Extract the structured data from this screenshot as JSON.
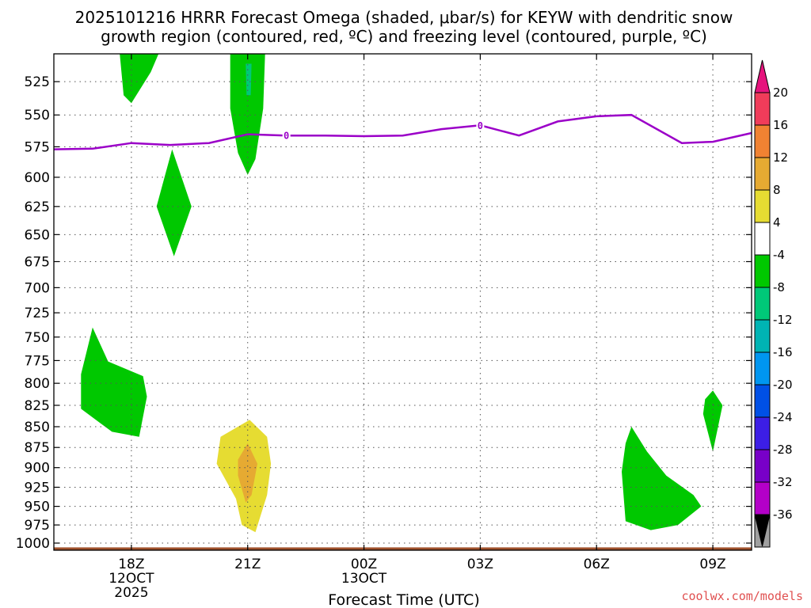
{
  "title_line1": "2025101216 HRRR Forecast Omega (shaded, μbar/s) for KEYW with dendritic snow",
  "title_line2": "growth region (contoured, red, ºC) and freezing level (contoured, purple, ºC)",
  "credit": "coolwx.com/models",
  "chart_data": {
    "type": "contour-timeheight",
    "title": "2025101216 HRRR Forecast Omega (shaded, μbar/s) for KEYW with dendritic snow growth region (contoured, red, ºC) and freezing level (contoured, purple, ºC)",
    "xlabel": "Forecast Time (UTC)",
    "ylabel": "",
    "x_unit": "hours after 2025-10-12 16Z",
    "xlim": [
      0,
      18
    ],
    "ylim": [
      1010,
      505
    ],
    "y_scale": "log",
    "grid": true,
    "x_ticks": [
      {
        "x": 2,
        "lines": [
          "18Z",
          "12OCT",
          "2025"
        ]
      },
      {
        "x": 5,
        "lines": [
          "21Z"
        ]
      },
      {
        "x": 8,
        "lines": [
          "00Z",
          "13OCT"
        ]
      },
      {
        "x": 11,
        "lines": [
          "03Z"
        ]
      },
      {
        "x": 14,
        "lines": [
          "06Z"
        ]
      },
      {
        "x": 17,
        "lines": [
          "09Z"
        ]
      }
    ],
    "y_ticks": [
      525,
      550,
      575,
      600,
      625,
      650,
      675,
      700,
      725,
      750,
      775,
      800,
      825,
      850,
      875,
      900,
      925,
      950,
      975,
      1000
    ],
    "colorbar": {
      "labels": [
        20,
        16,
        12,
        8,
        4,
        -4,
        -8,
        -12,
        -16,
        -20,
        -24,
        -28,
        -32,
        -36
      ],
      "colors": [
        "#f03c5a",
        "#f08232",
        "#e6aa32",
        "#e6dc32",
        "#ffffff",
        "#00c800",
        "#00c878",
        "#00b4b4",
        "#0096f0",
        "#0050e6",
        "#3c1ee6",
        "#7800c8",
        "#b400c8",
        "#a0a0a0"
      ],
      "top_arrow_color": "#e6147d",
      "bottom_arrow_color": "#000000"
    },
    "freezing_level": {
      "label": "0",
      "color": "#9b00c8",
      "points": [
        [
          0,
          577
        ],
        [
          1,
          576.5
        ],
        [
          2,
          572
        ],
        [
          3,
          573.5
        ],
        [
          4,
          572
        ],
        [
          5,
          565
        ],
        [
          6,
          566
        ],
        [
          7,
          566
        ],
        [
          8,
          566.5
        ],
        [
          9,
          566
        ],
        [
          10,
          561
        ],
        [
          11,
          558
        ],
        [
          12,
          566
        ],
        [
          13,
          555
        ],
        [
          14,
          551
        ],
        [
          14.9,
          550
        ],
        [
          16.2,
          572
        ],
        [
          17,
          571
        ],
        [
          18,
          564
        ]
      ],
      "label_positions": [
        [
          6,
          566
        ],
        [
          11,
          558
        ]
      ]
    },
    "shaded_regions": [
      {
        "name": "green-blob-top-left",
        "omega_range": "-8 to -4",
        "points": [
          [
            1.7,
            505
          ],
          [
            2.7,
            505
          ],
          [
            2.5,
            518
          ],
          [
            2.0,
            541
          ],
          [
            1.8,
            535
          ]
        ]
      },
      {
        "name": "green-blob-top-center",
        "omega_range": "-8 to -4",
        "points": [
          [
            4.55,
            505
          ],
          [
            5.45,
            505
          ],
          [
            5.4,
            545
          ],
          [
            5.2,
            585
          ],
          [
            5.0,
            598
          ],
          [
            4.75,
            580
          ],
          [
            4.55,
            545
          ]
        ]
      },
      {
        "name": "teal-streak-top-center",
        "omega_range": "-12 to -8",
        "points": [
          [
            4.95,
            512
          ],
          [
            5.1,
            512
          ],
          [
            5.08,
            535
          ],
          [
            4.97,
            535
          ]
        ]
      },
      {
        "name": "green-diamond-upper",
        "omega_range": "-8 to -4",
        "points": [
          [
            3.05,
            577
          ],
          [
            3.55,
            625
          ],
          [
            3.1,
            670
          ],
          [
            2.65,
            625
          ]
        ]
      },
      {
        "name": "green-blob-mid-left",
        "omega_range": "-8 to -4",
        "points": [
          [
            1.0,
            740
          ],
          [
            1.4,
            776
          ],
          [
            2.3,
            792
          ],
          [
            2.4,
            815
          ],
          [
            2.2,
            862
          ],
          [
            1.5,
            856
          ],
          [
            0.7,
            829
          ],
          [
            0.7,
            790
          ]
        ]
      },
      {
        "name": "yellow-blob-lower-center",
        "omega_range": "4 to 8",
        "points": [
          [
            5.05,
            842
          ],
          [
            5.5,
            862
          ],
          [
            5.6,
            895
          ],
          [
            5.5,
            935
          ],
          [
            5.2,
            985
          ],
          [
            4.85,
            975
          ],
          [
            4.7,
            940
          ],
          [
            4.2,
            895
          ],
          [
            4.3,
            862
          ]
        ]
      },
      {
        "name": "orange-core-lower-center",
        "omega_range": "8 to 12",
        "points": [
          [
            5.0,
            870
          ],
          [
            5.25,
            895
          ],
          [
            5.1,
            935
          ],
          [
            4.95,
            945
          ],
          [
            4.75,
            910
          ],
          [
            4.75,
            890
          ]
        ]
      },
      {
        "name": "green-blob-lower-right",
        "omega_range": "-8 to -4",
        "points": [
          [
            14.9,
            850
          ],
          [
            15.3,
            880
          ],
          [
            15.8,
            910
          ],
          [
            16.5,
            935
          ],
          [
            16.7,
            950
          ],
          [
            16.1,
            975
          ],
          [
            15.4,
            982
          ],
          [
            14.75,
            970
          ],
          [
            14.65,
            905
          ],
          [
            14.75,
            870
          ]
        ]
      },
      {
        "name": "green-streak-right",
        "omega_range": "-8 to -4",
        "points": [
          [
            17.0,
            808
          ],
          [
            17.25,
            825
          ],
          [
            17.0,
            880
          ],
          [
            16.75,
            835
          ],
          [
            16.8,
            818
          ]
        ]
      }
    ],
    "terrain": {
      "color": "#a0522d",
      "pressure": 1010,
      "top": 1006
    }
  }
}
